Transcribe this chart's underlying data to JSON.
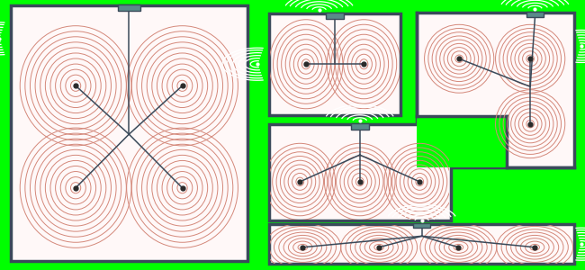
{
  "bg_color": "#00ff00",
  "room_fill": "#fff8f8",
  "room_edge": "#3a4a5a",
  "room_lw": 2.5,
  "contour_color": "#d4887a",
  "contour_lw": 0.7,
  "wire_color": "#3a4a5a",
  "wire_lw": 1.1,
  "hub_color": "#5a8a8a",
  "dot_color": "#2a2a2a",
  "dot_size": 3.5,
  "ant_color": "#ffffff",
  "ant_lw": 0.9
}
